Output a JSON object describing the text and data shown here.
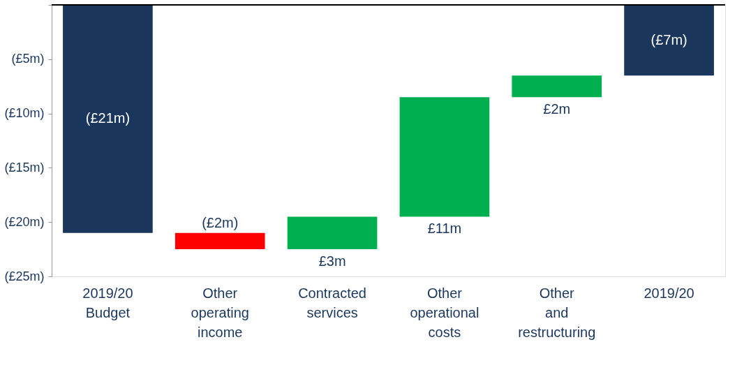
{
  "chart_data": {
    "type": "bar",
    "categories": [
      "2019/20 Budget",
      "Other operating income",
      "Contracted services",
      "Other operational costs",
      "Other and restructuring",
      "2019/20"
    ],
    "base": [
      0,
      -21,
      -22.5,
      -19.5,
      -8.5,
      0
    ],
    "values": [
      -21,
      -1.5,
      3,
      11,
      2,
      -6.5
    ],
    "colors": [
      "#1b365d",
      "#ff0000",
      "#00b050",
      "#00b050",
      "#00b050",
      "#1b365d"
    ],
    "value_labels": [
      "(£21m)",
      "(£2m)",
      "£3m",
      "£11m",
      "£2m",
      "(£7m)"
    ],
    "ylim": [
      -25,
      0
    ],
    "yticks": [
      {
        "value": -25,
        "label": "(£25m)"
      },
      {
        "value": -20,
        "label": "(£20m)"
      },
      {
        "value": -15,
        "label": "(£15m)"
      },
      {
        "value": -10,
        "label": "(£10m)"
      },
      {
        "value": -5,
        "label": "(£5m)"
      },
      {
        "value": 0,
        "label": null
      }
    ],
    "ref_lines": [
      {
        "axis": "y",
        "value": 0,
        "label": null,
        "color": "#000000"
      }
    ],
    "grid": false
  }
}
